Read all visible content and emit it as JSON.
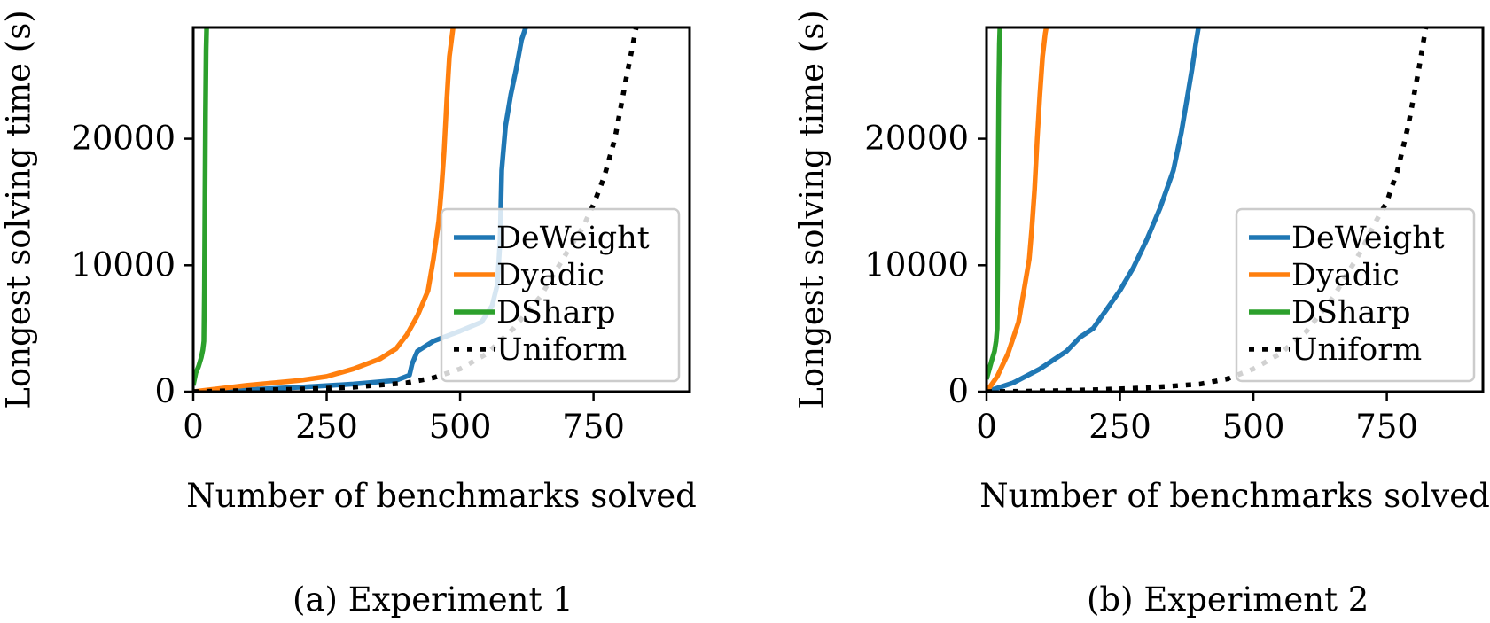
{
  "colors": {
    "deweight": "#1f77b4",
    "dyadic": "#ff7f0e",
    "dsharp": "#2ca02c",
    "uniform": "#000000"
  },
  "captions": [
    "(a) Experiment 1",
    "(b) Experiment 2"
  ],
  "chart_data": [
    {
      "type": "line",
      "xlabel": "Number of benchmarks solved",
      "ylabel": "Longest solving time (s)",
      "xlim": [
        0,
        930
      ],
      "ylim": [
        0,
        28800
      ],
      "xticks": [
        0,
        250,
        500,
        750
      ],
      "yticks": [
        0,
        10000,
        20000
      ],
      "legend_position": "center-right",
      "grid": false,
      "series": [
        {
          "name": "DeWeight",
          "color": "#1f77b4",
          "style": "solid",
          "x": [
            0,
            100,
            200,
            300,
            380,
            405,
            410,
            420,
            450,
            500,
            540,
            560,
            570,
            575,
            578,
            580,
            585,
            595,
            605,
            615,
            623
          ],
          "y": [
            0,
            150,
            350,
            600,
            900,
            1300,
            2200,
            3200,
            4000,
            4800,
            5500,
            6800,
            8500,
            12000,
            17500,
            18500,
            21000,
            23500,
            25500,
            27800,
            28800
          ]
        },
        {
          "name": "Dyadic",
          "color": "#ff7f0e",
          "style": "solid",
          "x": [
            0,
            100,
            200,
            250,
            300,
            350,
            380,
            400,
            420,
            440,
            450,
            460,
            465,
            470,
            475,
            480,
            487
          ],
          "y": [
            0,
            500,
            900,
            1200,
            1800,
            2600,
            3400,
            4500,
            6000,
            8000,
            10500,
            13500,
            16000,
            19000,
            23000,
            26500,
            28800
          ]
        },
        {
          "name": "DSharp",
          "color": "#2ca02c",
          "style": "solid",
          "x": [
            0,
            5,
            10,
            15,
            18,
            20,
            21,
            22,
            23,
            24,
            25
          ],
          "y": [
            500,
            1500,
            2000,
            2700,
            3300,
            4000,
            8000,
            15000,
            22000,
            27000,
            28800
          ]
        },
        {
          "name": "Uniform",
          "color": "#000000",
          "style": "dotted",
          "x": [
            0,
            100,
            200,
            300,
            400,
            450,
            500,
            550,
            600,
            650,
            700,
            730,
            750,
            770,
            790,
            810,
            830
          ],
          "y": [
            0,
            100,
            200,
            350,
            700,
            1100,
            1800,
            3000,
            5000,
            7500,
            11000,
            13000,
            14800,
            17000,
            20000,
            24500,
            28800
          ]
        }
      ]
    },
    {
      "type": "line",
      "xlabel": "Number of benchmarks solved",
      "ylabel": "Longest solving time (s)",
      "xlim": [
        0,
        930
      ],
      "ylim": [
        0,
        28800
      ],
      "xticks": [
        0,
        250,
        500,
        750
      ],
      "yticks": [
        0,
        10000,
        20000
      ],
      "legend_position": "center-right",
      "grid": false,
      "series": [
        {
          "name": "DeWeight",
          "color": "#1f77b4",
          "style": "solid",
          "x": [
            0,
            50,
            100,
            150,
            175,
            200,
            225,
            250,
            275,
            300,
            325,
            350,
            365,
            375,
            385,
            392,
            397
          ],
          "y": [
            0,
            700,
            1800,
            3200,
            4300,
            5000,
            6500,
            8000,
            9800,
            12000,
            14500,
            17500,
            20500,
            23000,
            25500,
            27500,
            28800
          ]
        },
        {
          "name": "Dyadic",
          "color": "#ff7f0e",
          "style": "solid",
          "x": [
            0,
            20,
            40,
            60,
            70,
            80,
            85,
            90,
            95,
            100,
            105,
            110,
            112
          ],
          "y": [
            0,
            1200,
            3000,
            5500,
            8000,
            10500,
            13000,
            16000,
            20000,
            23500,
            26500,
            28300,
            28800
          ]
        },
        {
          "name": "DSharp",
          "color": "#2ca02c",
          "style": "solid",
          "x": [
            0,
            10,
            15,
            18,
            20,
            21,
            22,
            23,
            24,
            25
          ],
          "y": [
            1000,
            2500,
            3200,
            4000,
            5000,
            10000,
            18000,
            24000,
            27500,
            28800
          ]
        },
        {
          "name": "Uniform",
          "color": "#000000",
          "style": "dotted",
          "x": [
            0,
            100,
            200,
            300,
            400,
            450,
            500,
            550,
            600,
            650,
            700,
            730,
            750,
            770,
            790,
            810,
            823
          ],
          "y": [
            0,
            50,
            150,
            300,
            600,
            1000,
            1800,
            3000,
            4800,
            7500,
            11000,
            13500,
            15000,
            17500,
            21000,
            25500,
            28800
          ]
        }
      ]
    }
  ]
}
